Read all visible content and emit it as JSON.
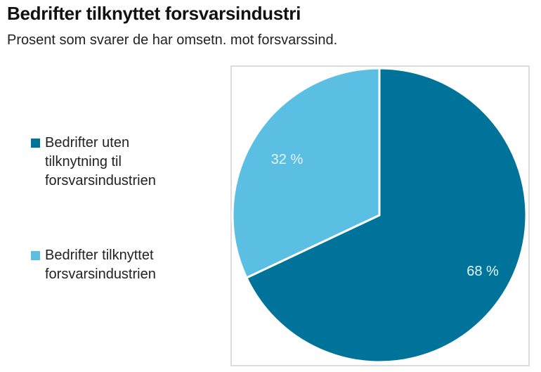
{
  "chart_data": {
    "type": "pie",
    "title": "Bedrifter tilknyttet forsvarsindustri",
    "subtitle": "Prosent som svarer de  har omsetn. mot forsvarssind.",
    "start_angle_deg": 0,
    "direction": "clockwise",
    "slices": [
      {
        "name": "Bedrifter uten tilknytning til forsvarsindustrien",
        "value": 68,
        "label": "68 %",
        "color": "#00739a"
      },
      {
        "name": "Bedrifter tilknyttet forsvarsindustrien",
        "value": 32,
        "label": "32 %",
        "color": "#5bbfe3"
      }
    ],
    "legend": {
      "placement": "left",
      "entries": [
        {
          "label": "Bedrifter uten tilknytning til forsvarsindustrien",
          "color": "#00739a"
        },
        {
          "label": "Bedrifter tilknyttet forsvarsindustrien",
          "color": "#5bbfe3"
        }
      ]
    }
  }
}
